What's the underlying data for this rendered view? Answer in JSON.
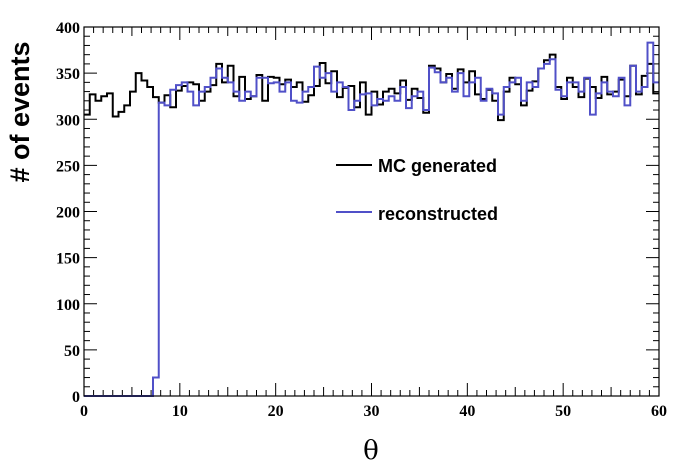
{
  "chart_data": {
    "type": "histogram",
    "title": "",
    "xlabel": "θ",
    "ylabel": "# of events",
    "xlim": [
      0,
      60
    ],
    "ylim": [
      0,
      400
    ],
    "bin_width": 0.6,
    "x_ticks": [
      0,
      10,
      20,
      30,
      40,
      50,
      60
    ],
    "y_ticks": [
      0,
      50,
      100,
      150,
      200,
      250,
      300,
      350,
      400
    ],
    "x_tick_labels": [
      "0",
      "10",
      "20",
      "30",
      "40",
      "50",
      "60"
    ],
    "y_tick_labels": [
      "0",
      "50",
      "100",
      "150",
      "200",
      "250",
      "300",
      "350",
      "400"
    ],
    "legend": {
      "position": "center-right",
      "entries": [
        "MC generated",
        "reconstructed"
      ]
    },
    "series": [
      {
        "name": "MC generated",
        "color": "#000000",
        "values": [
          305,
          327,
          320,
          325,
          328,
          303,
          308,
          315,
          330,
          350,
          342,
          335,
          324,
          318,
          326,
          313,
          331,
          336,
          340,
          338,
          320,
          330,
          337,
          360,
          340,
          358,
          325,
          346,
          322,
          325,
          348,
          320,
          346,
          345,
          338,
          343,
          335,
          340,
          319,
          326,
          336,
          361,
          339,
          352,
          324,
          334,
          336,
          313,
          340,
          305,
          330,
          316,
          330,
          333,
          328,
          342,
          321,
          333,
          323,
          307,
          358,
          355,
          340,
          349,
          333,
          354,
          340,
          352,
          327,
          322,
          332,
          320,
          299,
          330,
          345,
          338,
          315,
          331,
          341,
          355,
          364,
          370,
          335,
          322,
          345,
          335,
          324,
          344,
          335,
          323,
          346,
          327,
          330,
          343,
          325,
          358,
          327,
          347,
          360,
          328
        ]
      },
      {
        "name": "reconstructed",
        "color": "#5050c8",
        "values": [
          0,
          0,
          0,
          0,
          0,
          0,
          0,
          0,
          0,
          0,
          0,
          0,
          20,
          318,
          315,
          332,
          337,
          340,
          330,
          315,
          330,
          335,
          345,
          355,
          345,
          340,
          330,
          320,
          330,
          325,
          345,
          345,
          339,
          340,
          330,
          340,
          320,
          318,
          330,
          335,
          357,
          345,
          350,
          330,
          340,
          335,
          310,
          320,
          327,
          328,
          315,
          322,
          320,
          325,
          320,
          335,
          312,
          325,
          330,
          310,
          356,
          351,
          340,
          345,
          330,
          350,
          325,
          340,
          345,
          320,
          333,
          328,
          305,
          335,
          340,
          345,
          320,
          340,
          335,
          355,
          360,
          365,
          332,
          325,
          340,
          340,
          330,
          345,
          305,
          328,
          340,
          330,
          325,
          345,
          315,
          358,
          330,
          335,
          383,
          340
        ]
      }
    ]
  }
}
